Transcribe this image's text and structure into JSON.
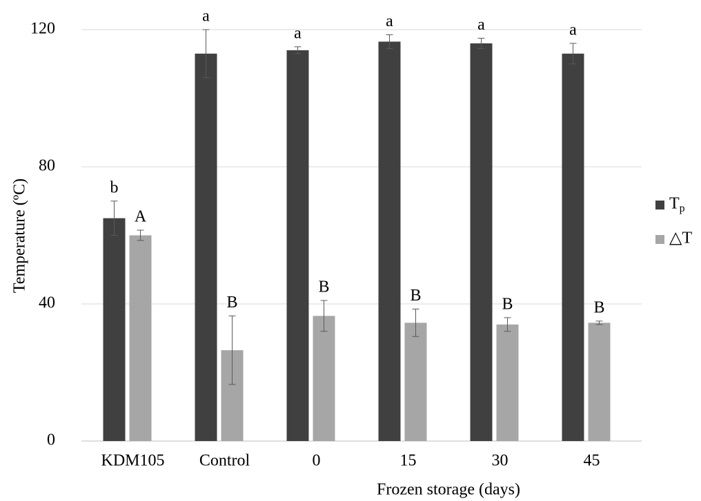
{
  "chart_data": {
    "type": "bar",
    "y_axis_label": "Temperature (ºC)",
    "x_axis_label": "Frozen storage (days)",
    "categories": [
      "KDM105",
      "Control",
      "0",
      "15",
      "30",
      "45"
    ],
    "series": [
      {
        "name": "Tp",
        "color": "#404040",
        "values": [
          65,
          113,
          114,
          116.5,
          116,
          113
        ],
        "errors": [
          5,
          7,
          1,
          2,
          1.5,
          3
        ],
        "annotations": [
          "b",
          "a",
          "a",
          "a",
          "a",
          "a"
        ]
      },
      {
        "name": "△T",
        "color": "#a6a6a6",
        "values": [
          60,
          26.5,
          36.5,
          34.5,
          34,
          34.5
        ],
        "errors": [
          1.5,
          10,
          4.5,
          4,
          2,
          0.5
        ],
        "annotations": [
          "A",
          "B",
          "B",
          "B",
          "B",
          "B"
        ]
      }
    ],
    "ylim": [
      0,
      120
    ],
    "yticks": [
      0,
      40,
      80,
      120
    ],
    "grid": true,
    "legend": "right"
  }
}
